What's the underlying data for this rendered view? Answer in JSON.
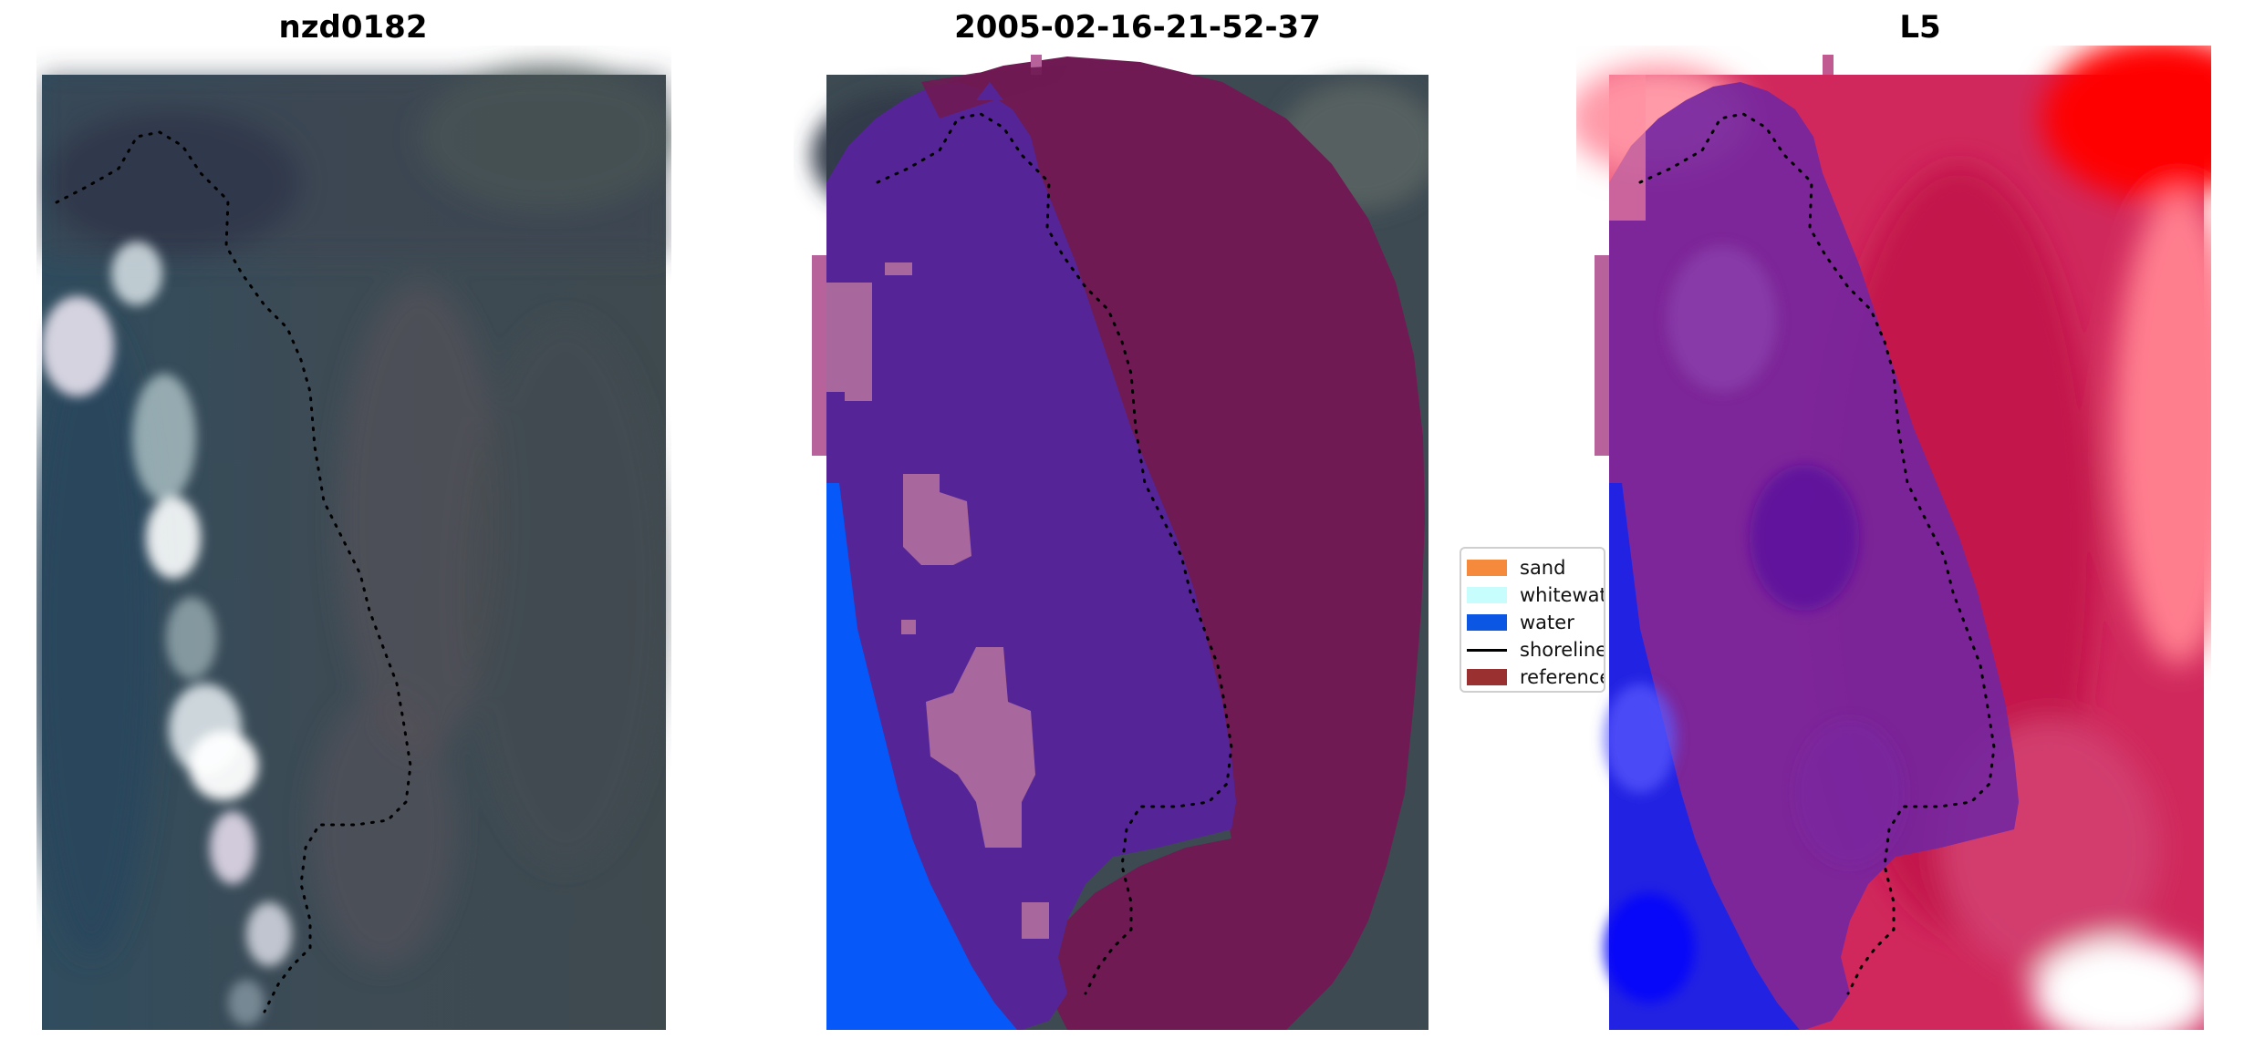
{
  "panels": [
    {
      "title": "nzd0182"
    },
    {
      "title": "2005-02-16-21-52-37"
    },
    {
      "title": "L5"
    }
  ],
  "legend": {
    "items": [
      {
        "label": "sand",
        "color": "#f58a3c",
        "kind": "patch"
      },
      {
        "label": "whitewat",
        "color": "#c8fdfd",
        "kind": "patch"
      },
      {
        "label": "water",
        "color": "#0b56e3",
        "kind": "patch"
      },
      {
        "label": "shoreline",
        "color": "#000000",
        "kind": "line"
      },
      {
        "label": "reference",
        "color": "#9b3030",
        "kind": "patch"
      }
    ]
  },
  "colors": {
    "rgb_dark": "#34454f",
    "rgb_water": "#2e4a5c",
    "whitewater_pale": "#dfe9ee",
    "class_water": "#0659f8",
    "class_overlay_purple": "#55259d",
    "class_overlay_maroon": "#6d1a52",
    "class_overlay_pink": "#a8689d",
    "index_red": "#c4154d",
    "index_blue": "#1a1ae6",
    "index_purple": "#6a1fa0"
  }
}
